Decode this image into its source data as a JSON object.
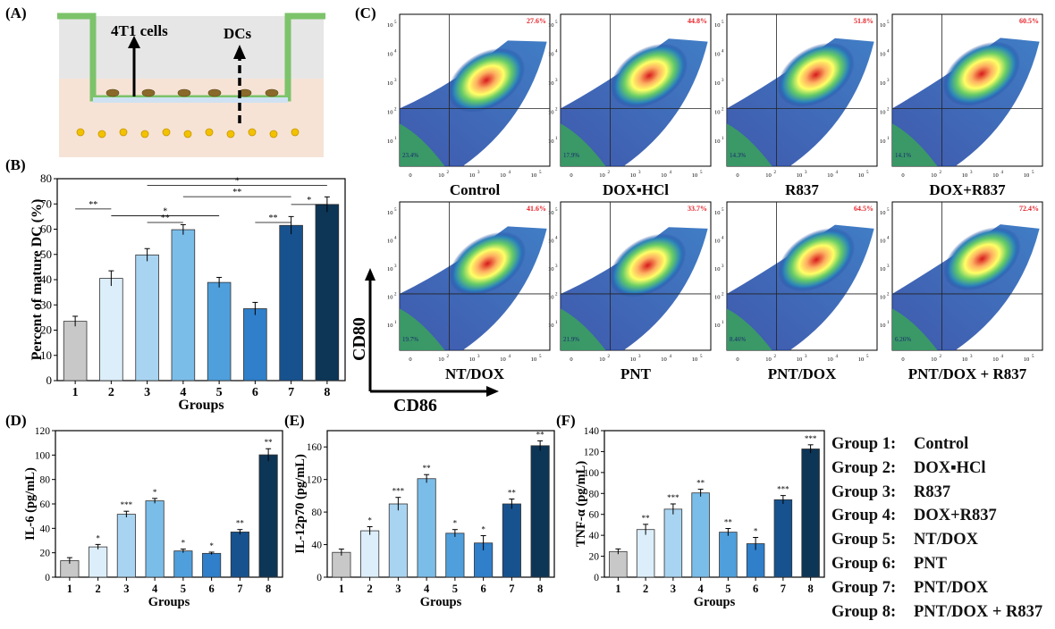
{
  "panels": {
    "a": {
      "letter": "(A)",
      "label_left": "4T1 cells",
      "label_right": "DCs"
    },
    "b": {
      "letter": "(B)"
    },
    "c": {
      "letter": "(C)",
      "xaxis": "CD86",
      "yaxis": "CD80",
      "ytick_labels": [
        "10",
        "10",
        "10",
        "10",
        "10"
      ],
      "ytick_exponents": [
        "5",
        "4",
        "3",
        "2",
        "1"
      ],
      "xtick_labels": [
        "0",
        "10",
        "10",
        "10",
        "10"
      ],
      "xtick_exponents": [
        "",
        "2",
        "3",
        "4",
        "5"
      ],
      "plots": [
        {
          "name": "Control",
          "q2": "27.6%",
          "q3": "23.4%",
          "intensity": 0.55
        },
        {
          "name": "DOX▪HCl",
          "q2": "44.8%",
          "q3": "17.9%",
          "intensity": 0.8
        },
        {
          "name": "R837",
          "q2": "51.8%",
          "q3": "14.3%",
          "intensity": 0.85
        },
        {
          "name": "DOX+R837",
          "q2": "60.5%",
          "q3": "14.1%",
          "intensity": 0.9
        },
        {
          "name": "NT/DOX",
          "q2": "41.6%",
          "q3": "19.7%",
          "intensity": 0.7
        },
        {
          "name": "PNT",
          "q2": "33.7%",
          "q3": "21.9%",
          "intensity": 0.6
        },
        {
          "name": "PNT/DOX",
          "q2": "64.5%",
          "q3": "8.46%",
          "intensity": 0.92
        },
        {
          "name": "PNT/DOX + R837",
          "q2": "72.4%",
          "q3": "6.26%",
          "intensity": 0.97
        }
      ]
    },
    "d": {
      "letter": "(D)"
    },
    "e": {
      "letter": "(E)"
    },
    "f": {
      "letter": "(F)"
    }
  },
  "legend": {
    "items": [
      {
        "group": "Group 1:",
        "name": "Control"
      },
      {
        "group": "Group 2:",
        "name": "DOX▪HCl"
      },
      {
        "group": "Group 3:",
        "name": "R837"
      },
      {
        "group": "Group 4:",
        "name": "DOX+R837"
      },
      {
        "group": "Group 5:",
        "name": "NT/DOX"
      },
      {
        "group": "Group 6:",
        "name": "PNT"
      },
      {
        "group": "Group 7:",
        "name": "PNT/DOX"
      },
      {
        "group": "Group 8:",
        "name": "PNT/DOX + R837"
      }
    ]
  },
  "colors": [
    "#c8c8c8",
    "#dceefa",
    "#a9d4f1",
    "#7bbde9",
    "#4f9fdc",
    "#2f7fca",
    "#17528f",
    "#0d3556"
  ],
  "chart_data": [
    {
      "panel": "B",
      "type": "bar",
      "categories": [
        "1",
        "2",
        "3",
        "4",
        "5",
        "6",
        "7",
        "8"
      ],
      "values": [
        23.5,
        40.5,
        49.8,
        59.8,
        38.9,
        28.5,
        61.5,
        69.8
      ],
      "errors": [
        2.0,
        3.0,
        2.5,
        2.0,
        2.0,
        2.5,
        3.5,
        3.0
      ],
      "xlabel": "Groups",
      "ylabel": "Percent of mature DC (%)",
      "ylim": [
        0,
        80
      ],
      "yticks": [
        0,
        10,
        20,
        30,
        40,
        50,
        60,
        70,
        80
      ],
      "significance": [
        {
          "from": 1,
          "to": 2,
          "label": "**",
          "level": 36.5
        },
        {
          "from": 2,
          "to": 5,
          "label": "*",
          "level": 33.5
        },
        {
          "from": 3,
          "to": 4,
          "label": "**",
          "level": 30.5
        },
        {
          "from": 3,
          "to": 8,
          "label": "*",
          "level": 47.0
        },
        {
          "from": 4,
          "to": 7,
          "label": "**",
          "level": 42.0
        },
        {
          "from": 7,
          "to": 8,
          "label": "*",
          "level": 38.5
        },
        {
          "from": 6,
          "to": 7,
          "label": "**",
          "level": 30.5
        }
      ]
    },
    {
      "panel": "D",
      "type": "bar",
      "categories": [
        "1",
        "2",
        "3",
        "4",
        "5",
        "6",
        "7",
        "8"
      ],
      "values": [
        13.5,
        24.8,
        51.5,
        62.5,
        21.5,
        19.5,
        37.0,
        100.2
      ],
      "errors": [
        2.5,
        2.0,
        2.5,
        2.0,
        1.5,
        1.0,
        2.0,
        5.0
      ],
      "sig": [
        "",
        "*",
        "***",
        "*",
        "*",
        "*",
        "**",
        "**"
      ],
      "xlabel": "Groups",
      "ylabel": "IL-6 (pg/mL)",
      "ylim": [
        0,
        120
      ],
      "yticks": [
        0,
        20,
        40,
        60,
        80,
        100,
        120
      ]
    },
    {
      "panel": "E",
      "type": "bar",
      "categories": [
        "1",
        "2",
        "3",
        "4",
        "5",
        "6",
        "7",
        "8"
      ],
      "values": [
        30.5,
        57.0,
        90.0,
        121.0,
        54.0,
        42.0,
        90.0,
        161.5
      ],
      "errors": [
        4.0,
        5.0,
        8.0,
        5.0,
        4.5,
        9.0,
        6.0,
        6.0
      ],
      "sig": [
        "",
        "*",
        "***",
        "**",
        "*",
        "*",
        "**",
        "**"
      ],
      "xlabel": "Groups",
      "ylabel": "IL-12p70 (pg/mL)",
      "ylim": [
        0,
        180
      ],
      "yticks": [
        0,
        40,
        80,
        120,
        160
      ]
    },
    {
      "panel": "F",
      "type": "bar",
      "categories": [
        "1",
        "2",
        "3",
        "4",
        "5",
        "6",
        "7",
        "8"
      ],
      "values": [
        24.5,
        45.5,
        65.0,
        80.5,
        43.0,
        32.0,
        74.0,
        122.5
      ],
      "errors": [
        2.5,
        5.0,
        5.0,
        3.5,
        3.5,
        6.0,
        4.0,
        4.0
      ],
      "sig": [
        "",
        "**",
        "***",
        "**",
        "**",
        "*",
        "***",
        "***"
      ],
      "xlabel": "Groups",
      "ylabel": "TNF-α (pg/mL)",
      "ylim": [
        0,
        140
      ],
      "yticks": [
        0,
        20,
        40,
        60,
        80,
        100,
        120,
        140
      ]
    }
  ]
}
